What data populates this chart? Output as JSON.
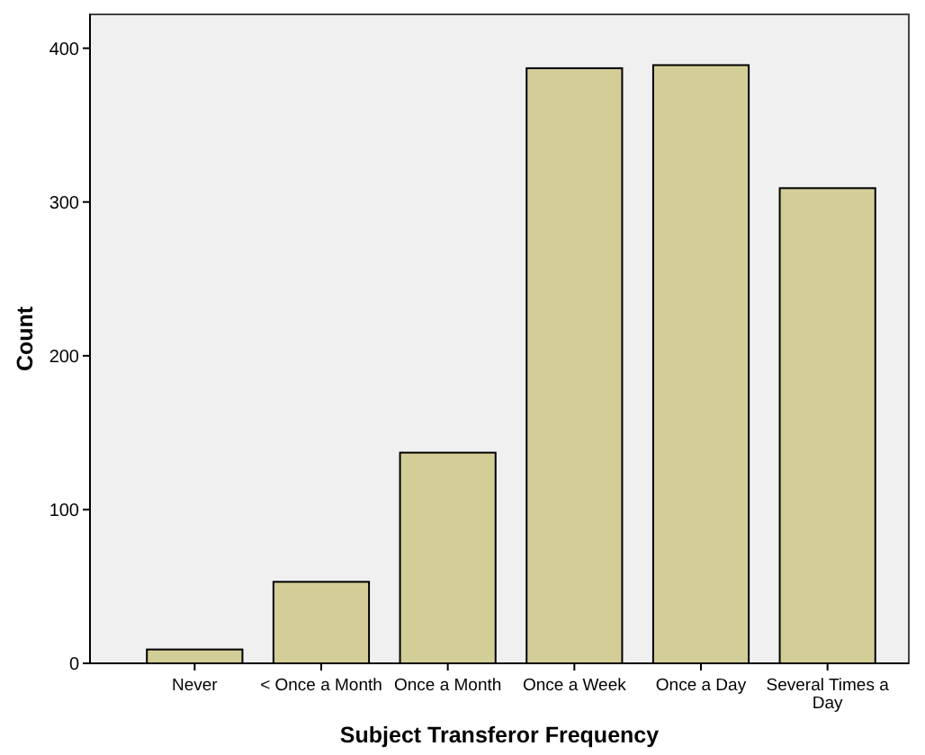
{
  "chart_data": {
    "type": "bar",
    "xlabel": "Subject Transferor Frequency",
    "ylabel": "Count",
    "categories": [
      "Never",
      "< Once a Month",
      "Once a Month",
      "Once a Week",
      "Once a Day",
      "Several Times a Day"
    ],
    "values": [
      9,
      53,
      137,
      387,
      389,
      309
    ],
    "color": "#d3ce97",
    "ylim": [
      0,
      422
    ],
    "yticks": [
      0,
      100,
      200,
      300,
      400
    ],
    "grid": false
  }
}
